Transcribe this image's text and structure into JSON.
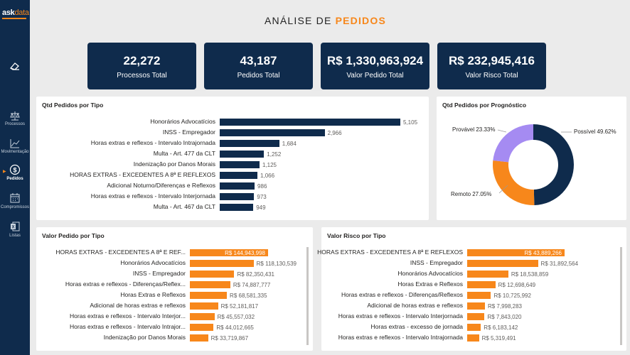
{
  "brand": {
    "logo_main": "ask",
    "logo_accent": "data"
  },
  "sidebar": {
    "items": [
      {
        "label": "Processos"
      },
      {
        "label": "Movimentação"
      },
      {
        "label": "Pedidos"
      },
      {
        "label": "Compromissos"
      },
      {
        "label": "Listas"
      }
    ]
  },
  "title": {
    "part1": "ANÁLISE DE ",
    "part2": "PEDIDOS"
  },
  "kpis": [
    {
      "value": "22,272",
      "label": "Processos Total"
    },
    {
      "value": "43,187",
      "label": "Pedidos Total"
    },
    {
      "value": "R$ 1,330,963,924",
      "label": "Valor Pedido Total"
    },
    {
      "value": "R$ 232,945,416",
      "label": "Valor Risco Total"
    }
  ],
  "colors": {
    "navy": "#0f2b4c",
    "orange": "#f7871b",
    "lavender": "#a58bf2"
  },
  "chart_data": [
    {
      "type": "bar",
      "title": "Qtd Pedidos por Tipo",
      "orientation": "horizontal",
      "categories": [
        "Honorários Advocatícios",
        "INSS - Empregador",
        "Horas extras e reflexos - Intervalo Intrajornada",
        "Multa - Art. 477 da CLT",
        "Indenização por Danos Morais",
        "HORAS EXTRAS - EXCEDENTES A 8ª E REFLEXOS",
        "Adicional Noturno/Diferenças e Reflexos",
        "Horas extras e reflexos - Intervalo Interjornada",
        "Multa - Art. 467 da CLT"
      ],
      "values": [
        5105,
        2966,
        1684,
        1252,
        1125,
        1066,
        986,
        973,
        949
      ],
      "labels": [
        "5,105",
        "2,966",
        "1,684",
        "1,252",
        "1,125",
        "1,066",
        "986",
        "973",
        "949"
      ],
      "xlim": [
        0,
        5105
      ]
    },
    {
      "type": "pie",
      "title": "Qtd Pedidos por Prognóstico",
      "categories": [
        "Possível",
        "Remoto",
        "Provável"
      ],
      "values": [
        49.62,
        27.05,
        23.33
      ],
      "labels": [
        "Possível 49.62%",
        "Remoto 27.05%",
        "Provável 23.33%"
      ],
      "colors": [
        "#0f2b4c",
        "#f7871b",
        "#a58bf2"
      ]
    },
    {
      "type": "bar",
      "title": "Valor Pedido por Tipo",
      "orientation": "horizontal",
      "categories": [
        "HORAS EXTRAS - EXCEDENTES A 8ª E REF...",
        "Honorários Advocatícios",
        "INSS - Empregador",
        "Horas extras e reflexos - Diferenças/Reflex...",
        "Horas Extras e Reflexos",
        "Adicional de horas extras e reflexos",
        "Horas extras e reflexos - Intervalo Interjor...",
        "Horas extras e reflexos - Intervalo Intrajor...",
        "Indenização por Danos Morais"
      ],
      "values": [
        144943998,
        118130539,
        82350431,
        74887777,
        68581335,
        52181817,
        45557032,
        44012665,
        33719867
      ],
      "labels": [
        "R$ 144,943,998",
        "R$ 118,130,539",
        "R$ 82,350,431",
        "R$ 74,887,777",
        "R$ 68,581,335",
        "R$ 52,181,817",
        "R$ 45,557,032",
        "R$ 44,012,665",
        "R$ 33,719,867"
      ],
      "xlim": [
        0,
        144943998
      ]
    },
    {
      "type": "bar",
      "title": "Valor Risco por Tipo",
      "orientation": "horizontal",
      "categories": [
        "HORAS EXTRAS - EXCEDENTES A 8ª E REFLEXOS",
        "INSS - Empregador",
        "Honorários Advocatícios",
        "Horas Extras e Reflexos",
        "Horas extras e reflexos - Diferenças/Reflexos",
        "Adicional de horas extras e reflexos",
        "Horas extras e reflexos - Intervalo Interjornada",
        "Horas extras - excesso de jornada",
        "Horas extras e reflexos - Intervalo Intrajornada"
      ],
      "values": [
        43889266,
        31892564,
        18538859,
        12698649,
        10725992,
        7998283,
        7843020,
        6183142,
        5319491
      ],
      "labels": [
        "R$ 43,889,266",
        "R$ 31,892,564",
        "R$ 18,538,859",
        "R$ 12,698,649",
        "R$ 10,725,992",
        "R$ 7,998,283",
        "R$ 7,843,020",
        "R$ 6,183,142",
        "R$ 5,319,491"
      ],
      "xlim": [
        0,
        43889266
      ]
    }
  ]
}
